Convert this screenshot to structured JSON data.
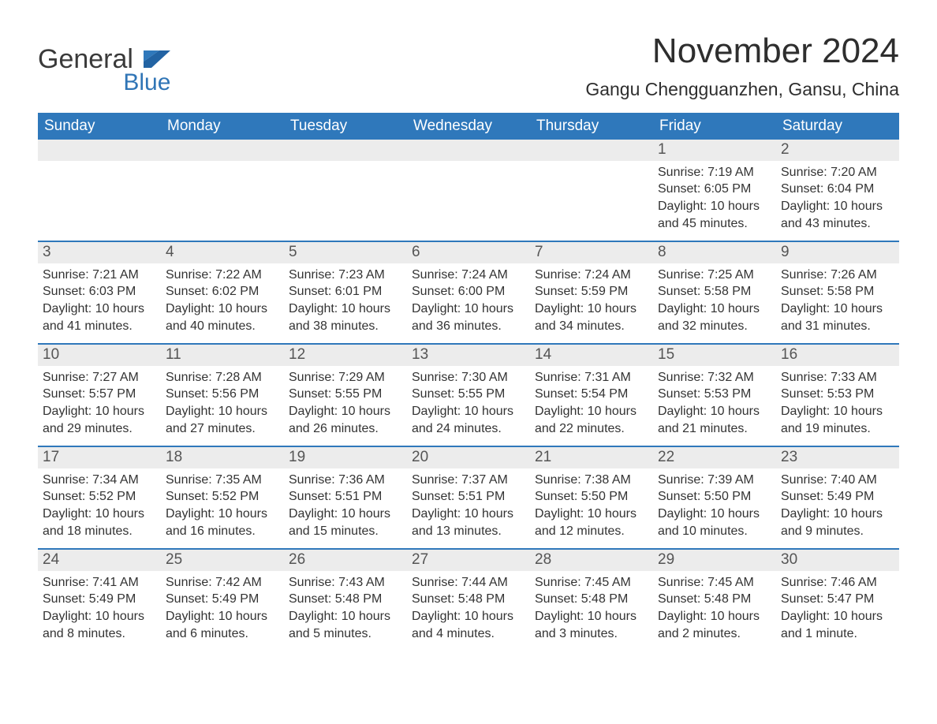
{
  "brand": {
    "word1": "General",
    "word2": "Blue"
  },
  "colors": {
    "header_bg": "#2f78bb",
    "header_text": "#ffffff",
    "daynum_bg": "#ececec",
    "daynum_text": "#555555",
    "body_text": "#333333",
    "divider": "#2f78bb",
    "brand_dark": "#3a3a3a",
    "brand_blue": "#3075b6",
    "page_bg": "#ffffff"
  },
  "typography": {
    "title_fontsize_pt": 33,
    "location_fontsize_pt": 17,
    "dayheader_fontsize_pt": 14,
    "daynum_fontsize_pt": 14,
    "body_fontsize_pt": 12,
    "font_family": "Helvetica"
  },
  "title": "November 2024",
  "location": "Gangu Chengguanzhen, Gansu, China",
  "day_headers": [
    "Sunday",
    "Monday",
    "Tuesday",
    "Wednesday",
    "Thursday",
    "Friday",
    "Saturday"
  ],
  "labels": {
    "sunrise": "Sunrise:",
    "sunset": "Sunset:",
    "daylight": "Daylight:"
  },
  "weeks": [
    [
      null,
      null,
      null,
      null,
      null,
      {
        "day": "1",
        "sunrise": "7:19 AM",
        "sunset": "6:05 PM",
        "daylight": "10 hours and 45 minutes."
      },
      {
        "day": "2",
        "sunrise": "7:20 AM",
        "sunset": "6:04 PM",
        "daylight": "10 hours and 43 minutes."
      }
    ],
    [
      {
        "day": "3",
        "sunrise": "7:21 AM",
        "sunset": "6:03 PM",
        "daylight": "10 hours and 41 minutes."
      },
      {
        "day": "4",
        "sunrise": "7:22 AM",
        "sunset": "6:02 PM",
        "daylight": "10 hours and 40 minutes."
      },
      {
        "day": "5",
        "sunrise": "7:23 AM",
        "sunset": "6:01 PM",
        "daylight": "10 hours and 38 minutes."
      },
      {
        "day": "6",
        "sunrise": "7:24 AM",
        "sunset": "6:00 PM",
        "daylight": "10 hours and 36 minutes."
      },
      {
        "day": "7",
        "sunrise": "7:24 AM",
        "sunset": "5:59 PM",
        "daylight": "10 hours and 34 minutes."
      },
      {
        "day": "8",
        "sunrise": "7:25 AM",
        "sunset": "5:58 PM",
        "daylight": "10 hours and 32 minutes."
      },
      {
        "day": "9",
        "sunrise": "7:26 AM",
        "sunset": "5:58 PM",
        "daylight": "10 hours and 31 minutes."
      }
    ],
    [
      {
        "day": "10",
        "sunrise": "7:27 AM",
        "sunset": "5:57 PM",
        "daylight": "10 hours and 29 minutes."
      },
      {
        "day": "11",
        "sunrise": "7:28 AM",
        "sunset": "5:56 PM",
        "daylight": "10 hours and 27 minutes."
      },
      {
        "day": "12",
        "sunrise": "7:29 AM",
        "sunset": "5:55 PM",
        "daylight": "10 hours and 26 minutes."
      },
      {
        "day": "13",
        "sunrise": "7:30 AM",
        "sunset": "5:55 PM",
        "daylight": "10 hours and 24 minutes."
      },
      {
        "day": "14",
        "sunrise": "7:31 AM",
        "sunset": "5:54 PM",
        "daylight": "10 hours and 22 minutes."
      },
      {
        "day": "15",
        "sunrise": "7:32 AM",
        "sunset": "5:53 PM",
        "daylight": "10 hours and 21 minutes."
      },
      {
        "day": "16",
        "sunrise": "7:33 AM",
        "sunset": "5:53 PM",
        "daylight": "10 hours and 19 minutes."
      }
    ],
    [
      {
        "day": "17",
        "sunrise": "7:34 AM",
        "sunset": "5:52 PM",
        "daylight": "10 hours and 18 minutes."
      },
      {
        "day": "18",
        "sunrise": "7:35 AM",
        "sunset": "5:52 PM",
        "daylight": "10 hours and 16 minutes."
      },
      {
        "day": "19",
        "sunrise": "7:36 AM",
        "sunset": "5:51 PM",
        "daylight": "10 hours and 15 minutes."
      },
      {
        "day": "20",
        "sunrise": "7:37 AM",
        "sunset": "5:51 PM",
        "daylight": "10 hours and 13 minutes."
      },
      {
        "day": "21",
        "sunrise": "7:38 AM",
        "sunset": "5:50 PM",
        "daylight": "10 hours and 12 minutes."
      },
      {
        "day": "22",
        "sunrise": "7:39 AM",
        "sunset": "5:50 PM",
        "daylight": "10 hours and 10 minutes."
      },
      {
        "day": "23",
        "sunrise": "7:40 AM",
        "sunset": "5:49 PM",
        "daylight": "10 hours and 9 minutes."
      }
    ],
    [
      {
        "day": "24",
        "sunrise": "7:41 AM",
        "sunset": "5:49 PM",
        "daylight": "10 hours and 8 minutes."
      },
      {
        "day": "25",
        "sunrise": "7:42 AM",
        "sunset": "5:49 PM",
        "daylight": "10 hours and 6 minutes."
      },
      {
        "day": "26",
        "sunrise": "7:43 AM",
        "sunset": "5:48 PM",
        "daylight": "10 hours and 5 minutes."
      },
      {
        "day": "27",
        "sunrise": "7:44 AM",
        "sunset": "5:48 PM",
        "daylight": "10 hours and 4 minutes."
      },
      {
        "day": "28",
        "sunrise": "7:45 AM",
        "sunset": "5:48 PM",
        "daylight": "10 hours and 3 minutes."
      },
      {
        "day": "29",
        "sunrise": "7:45 AM",
        "sunset": "5:48 PM",
        "daylight": "10 hours and 2 minutes."
      },
      {
        "day": "30",
        "sunrise": "7:46 AM",
        "sunset": "5:47 PM",
        "daylight": "10 hours and 1 minute."
      }
    ]
  ]
}
